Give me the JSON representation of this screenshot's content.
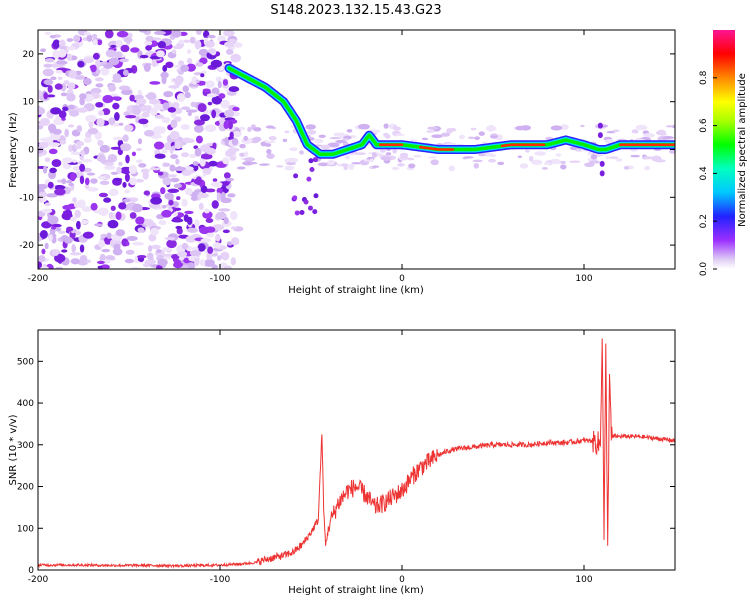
{
  "title": "S148.2023.132.15.43.G23",
  "chart_data": [
    {
      "type": "heatmap",
      "name": "spectrogram",
      "xlabel": "Height of straight line (km)",
      "ylabel": "Frequency (Hz)",
      "xlim": [
        -200,
        150
      ],
      "ylim": [
        -25,
        25
      ],
      "xticks": [
        -200,
        -100,
        0,
        100
      ],
      "yticks": [
        -20,
        -10,
        0,
        10,
        20
      ],
      "colorbar": {
        "label": "Normalized spectral amplitude",
        "range": [
          0,
          1
        ],
        "ticks": [
          0.0,
          0.2,
          0.4,
          0.6,
          0.8
        ],
        "tick_labels": [
          "0.0",
          "0.2",
          "0.4",
          "0.6",
          "0.8"
        ],
        "colors": [
          "#e8d6f8",
          "#8a2be2",
          "#2020ff",
          "#00e5ff",
          "#00e000",
          "#ffff00",
          "#ff0000",
          "#ff1493"
        ]
      },
      "signal_track": {
        "x": [
          -95,
          -85,
          -75,
          -65,
          -58,
          -52,
          -45,
          -38,
          -30,
          -22,
          -18,
          -14,
          -10,
          0,
          20,
          40,
          60,
          80,
          90,
          100,
          108,
          112,
          120,
          150
        ],
        "frequency": [
          17,
          15,
          13,
          10,
          6,
          1,
          -1,
          -1,
          0,
          1,
          3,
          1,
          1,
          1,
          0,
          0,
          1,
          1,
          2,
          1,
          0,
          0,
          1,
          1
        ]
      },
      "noise_region_x": [
        -200,
        -90
      ]
    },
    {
      "type": "line",
      "name": "snr",
      "xlabel": "Height of straight line (km)",
      "ylabel": "SNR (10 * v/v)",
      "xlim": [
        -200,
        150
      ],
      "ylim": [
        0,
        575
      ],
      "xticks": [
        -200,
        -100,
        0,
        100
      ],
      "yticks": [
        0,
        100,
        200,
        300,
        400,
        500
      ],
      "color": "#ee3333",
      "series": [
        {
          "name": "SNR",
          "x": [
            -200,
            -180,
            -160,
            -140,
            -120,
            -100,
            -90,
            -80,
            -75,
            -70,
            -65,
            -60,
            -55,
            -50,
            -46,
            -44,
            -43,
            -42,
            -40,
            -35,
            -30,
            -25,
            -20,
            -15,
            -10,
            -5,
            0,
            5,
            10,
            15,
            20,
            25,
            30,
            40,
            50,
            60,
            70,
            80,
            90,
            100,
            105,
            109,
            110,
            111,
            112,
            113,
            114,
            115,
            120,
            130,
            140,
            150
          ],
          "y": [
            12,
            12,
            11,
            11,
            10,
            12,
            14,
            18,
            25,
            30,
            35,
            42,
            60,
            90,
            120,
            330,
            140,
            60,
            110,
            160,
            190,
            200,
            180,
            150,
            160,
            175,
            190,
            220,
            245,
            260,
            275,
            285,
            290,
            295,
            300,
            300,
            300,
            305,
            305,
            310,
            310,
            300,
            570,
            80,
            520,
            50,
            470,
            320,
            320,
            320,
            315,
            310
          ]
        }
      ]
    }
  ]
}
